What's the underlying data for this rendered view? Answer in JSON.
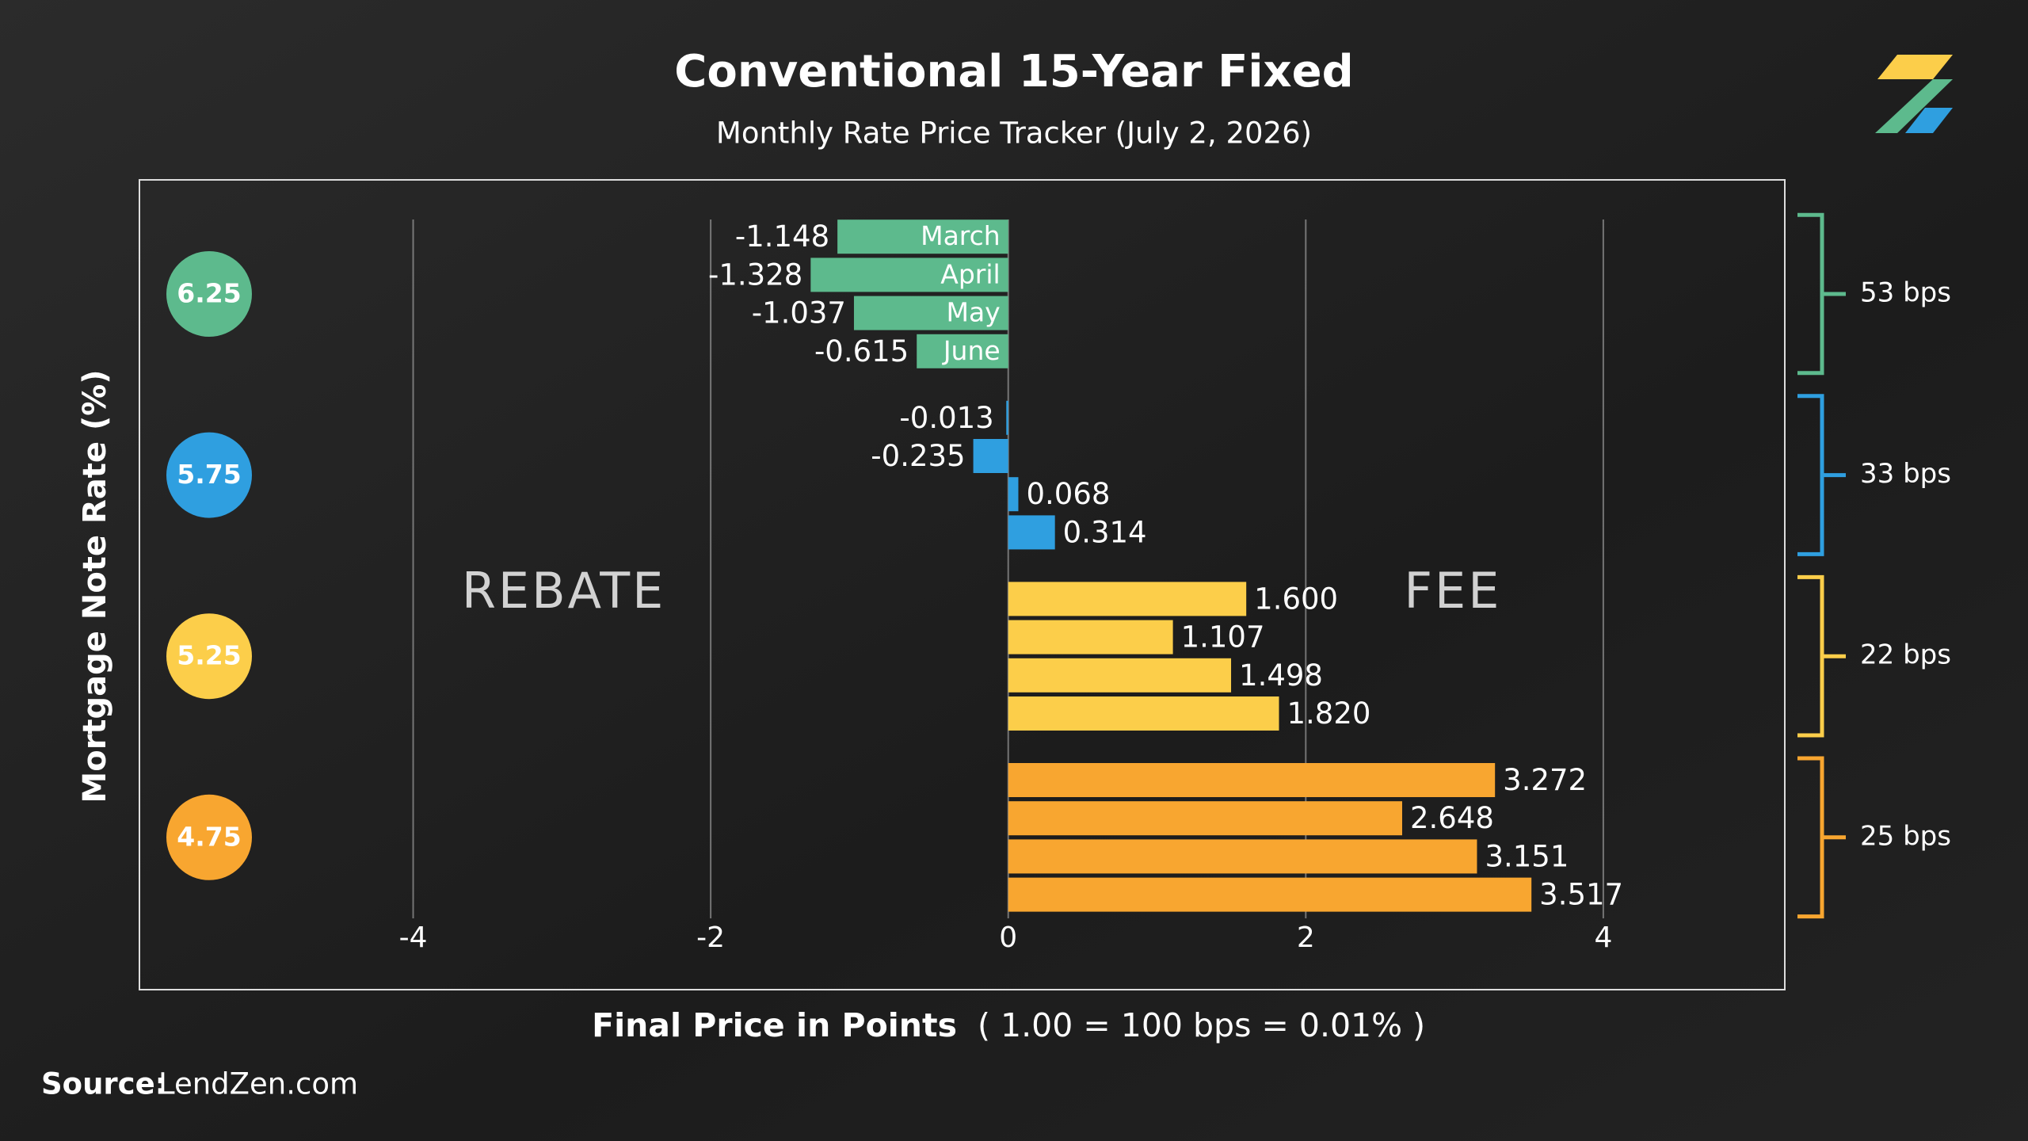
{
  "chart_data": {
    "type": "bar",
    "orientation": "horizontal",
    "title": "Conventional 15-Year Fixed",
    "subtitle": "Monthly Rate Price Tracker (July 2, 2026)",
    "ylabel": "Mortgage Note Rate (%)",
    "xlabel": "Final Price in Points",
    "xlabel_note": "( 1.00 = 100 bps = 0.01% )",
    "annotations": [
      "REBATE",
      "FEE"
    ],
    "source_label": "Source:",
    "source": "LendZen.com",
    "categories": [
      "March",
      "April",
      "May",
      "June"
    ],
    "series": [
      {
        "name": "6.25",
        "color": "#5dba8d",
        "spread": "53 bps",
        "values": [
          -1.148,
          -1.328,
          -1.037,
          -0.615
        ],
        "value_labels": [
          "-1.148",
          "-1.328",
          "-1.037",
          "-0.615"
        ]
      },
      {
        "name": "5.75",
        "color": "#2f9fe0",
        "spread": "33 bps",
        "values": [
          -0.013,
          -0.235,
          0.068,
          0.314
        ],
        "value_labels": [
          "-0.013",
          "-0.235",
          "0.068",
          "0.314"
        ]
      },
      {
        "name": "5.25",
        "color": "#fcce4a",
        "spread": "22 bps",
        "values": [
          1.6,
          1.107,
          1.498,
          1.82
        ],
        "value_labels": [
          "1.600",
          "1.107",
          "1.498",
          "1.820"
        ]
      },
      {
        "name": "4.75",
        "color": "#f8a630",
        "spread": "25 bps",
        "values": [
          3.272,
          2.648,
          3.151,
          3.517
        ],
        "value_labels": [
          "3.272",
          "2.648",
          "3.151",
          "3.517"
        ]
      }
    ],
    "xlim": [
      -5.84,
      5.22
    ],
    "xticks": [
      -4,
      -2,
      0,
      2,
      4
    ],
    "grid": true
  }
}
